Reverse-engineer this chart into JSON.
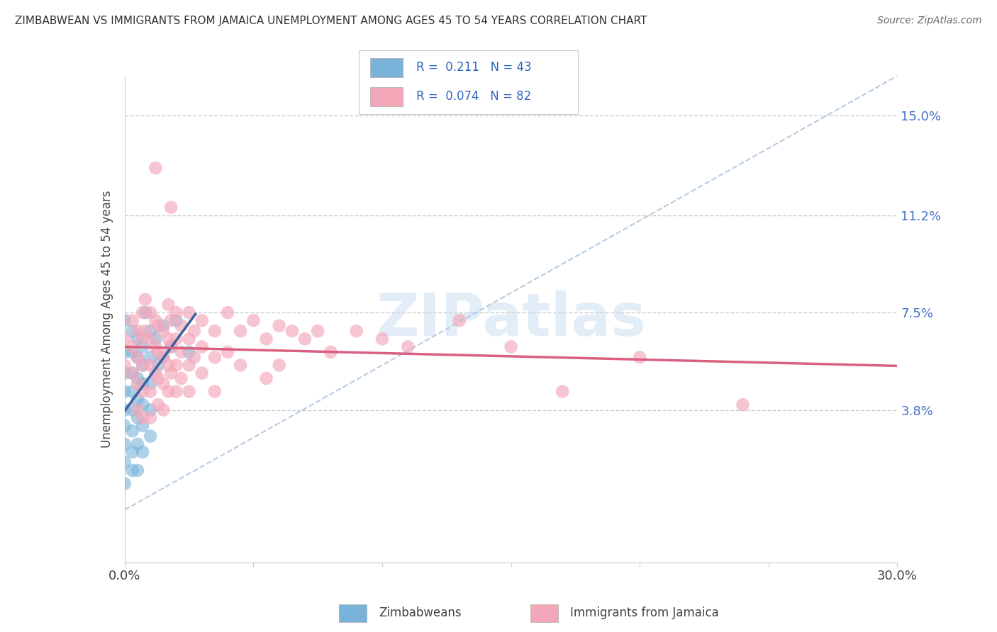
{
  "title": "ZIMBABWEAN VS IMMIGRANTS FROM JAMAICA UNEMPLOYMENT AMONG AGES 45 TO 54 YEARS CORRELATION CHART",
  "source": "Source: ZipAtlas.com",
  "ylabel": "Unemployment Among Ages 45 to 54 years",
  "x_min": 0.0,
  "x_max": 0.3,
  "y_min": -0.02,
  "y_max": 0.165,
  "x_tick_positions": [
    0.0,
    0.05,
    0.1,
    0.15,
    0.2,
    0.25,
    0.3
  ],
  "x_tick_labels": [
    "0.0%",
    "",
    "",
    "",
    "",
    "",
    "30.0%"
  ],
  "y_tick_positions": [
    0.038,
    0.075,
    0.112,
    0.15
  ],
  "y_tick_labels": [
    "3.8%",
    "7.5%",
    "11.2%",
    "15.0%"
  ],
  "watermark_text": "ZIPatlas",
  "zim_color": "#7ab3d9",
  "jam_color": "#f4a7b9",
  "zim_line_color": "#3a5fa0",
  "jam_line_color": "#d96080",
  "dashed_line_color": "#aec6e0",
  "zimbabwean_points": [
    [
      0.0,
      0.072
    ],
    [
      0.0,
      0.06
    ],
    [
      0.0,
      0.052
    ],
    [
      0.0,
      0.045
    ],
    [
      0.0,
      0.038
    ],
    [
      0.0,
      0.032
    ],
    [
      0.0,
      0.025
    ],
    [
      0.0,
      0.018
    ],
    [
      0.0,
      0.01
    ],
    [
      0.003,
      0.068
    ],
    [
      0.003,
      0.06
    ],
    [
      0.003,
      0.052
    ],
    [
      0.003,
      0.045
    ],
    [
      0.003,
      0.038
    ],
    [
      0.003,
      0.03
    ],
    [
      0.003,
      0.022
    ],
    [
      0.003,
      0.015
    ],
    [
      0.005,
      0.065
    ],
    [
      0.005,
      0.058
    ],
    [
      0.005,
      0.05
    ],
    [
      0.005,
      0.042
    ],
    [
      0.005,
      0.035
    ],
    [
      0.005,
      0.025
    ],
    [
      0.005,
      0.015
    ],
    [
      0.007,
      0.062
    ],
    [
      0.007,
      0.055
    ],
    [
      0.007,
      0.048
    ],
    [
      0.007,
      0.04
    ],
    [
      0.007,
      0.032
    ],
    [
      0.007,
      0.022
    ],
    [
      0.008,
      0.075
    ],
    [
      0.01,
      0.068
    ],
    [
      0.01,
      0.058
    ],
    [
      0.01,
      0.048
    ],
    [
      0.01,
      0.038
    ],
    [
      0.01,
      0.028
    ],
    [
      0.012,
      0.065
    ],
    [
      0.013,
      0.055
    ],
    [
      0.015,
      0.07
    ],
    [
      0.015,
      0.058
    ],
    [
      0.018,
      0.062
    ],
    [
      0.02,
      0.072
    ],
    [
      0.025,
      0.06
    ]
  ],
  "jamaica_points": [
    [
      0.0,
      0.065
    ],
    [
      0.0,
      0.055
    ],
    [
      0.003,
      0.072
    ],
    [
      0.003,
      0.062
    ],
    [
      0.003,
      0.052
    ],
    [
      0.005,
      0.068
    ],
    [
      0.005,
      0.058
    ],
    [
      0.005,
      0.048
    ],
    [
      0.005,
      0.038
    ],
    [
      0.007,
      0.075
    ],
    [
      0.007,
      0.065
    ],
    [
      0.007,
      0.055
    ],
    [
      0.007,
      0.045
    ],
    [
      0.007,
      0.035
    ],
    [
      0.008,
      0.08
    ],
    [
      0.008,
      0.068
    ],
    [
      0.01,
      0.075
    ],
    [
      0.01,
      0.065
    ],
    [
      0.01,
      0.055
    ],
    [
      0.01,
      0.045
    ],
    [
      0.01,
      0.035
    ],
    [
      0.012,
      0.13
    ],
    [
      0.012,
      0.072
    ],
    [
      0.012,
      0.062
    ],
    [
      0.012,
      0.052
    ],
    [
      0.013,
      0.07
    ],
    [
      0.013,
      0.06
    ],
    [
      0.013,
      0.05
    ],
    [
      0.013,
      0.04
    ],
    [
      0.015,
      0.068
    ],
    [
      0.015,
      0.058
    ],
    [
      0.015,
      0.048
    ],
    [
      0.015,
      0.038
    ],
    [
      0.017,
      0.078
    ],
    [
      0.017,
      0.065
    ],
    [
      0.017,
      0.055
    ],
    [
      0.017,
      0.045
    ],
    [
      0.018,
      0.115
    ],
    [
      0.018,
      0.072
    ],
    [
      0.018,
      0.062
    ],
    [
      0.018,
      0.052
    ],
    [
      0.02,
      0.075
    ],
    [
      0.02,
      0.065
    ],
    [
      0.02,
      0.055
    ],
    [
      0.02,
      0.045
    ],
    [
      0.022,
      0.07
    ],
    [
      0.022,
      0.06
    ],
    [
      0.022,
      0.05
    ],
    [
      0.025,
      0.075
    ],
    [
      0.025,
      0.065
    ],
    [
      0.025,
      0.055
    ],
    [
      0.025,
      0.045
    ],
    [
      0.027,
      0.068
    ],
    [
      0.027,
      0.058
    ],
    [
      0.03,
      0.072
    ],
    [
      0.03,
      0.062
    ],
    [
      0.03,
      0.052
    ],
    [
      0.035,
      0.068
    ],
    [
      0.035,
      0.058
    ],
    [
      0.035,
      0.045
    ],
    [
      0.04,
      0.075
    ],
    [
      0.04,
      0.06
    ],
    [
      0.045,
      0.068
    ],
    [
      0.045,
      0.055
    ],
    [
      0.05,
      0.072
    ],
    [
      0.055,
      0.065
    ],
    [
      0.055,
      0.05
    ],
    [
      0.06,
      0.07
    ],
    [
      0.06,
      0.055
    ],
    [
      0.065,
      0.068
    ],
    [
      0.07,
      0.065
    ],
    [
      0.075,
      0.068
    ],
    [
      0.08,
      0.06
    ],
    [
      0.09,
      0.068
    ],
    [
      0.1,
      0.065
    ],
    [
      0.11,
      0.062
    ],
    [
      0.13,
      0.072
    ],
    [
      0.15,
      0.062
    ],
    [
      0.17,
      0.045
    ],
    [
      0.2,
      0.058
    ],
    [
      0.24,
      0.04
    ]
  ]
}
